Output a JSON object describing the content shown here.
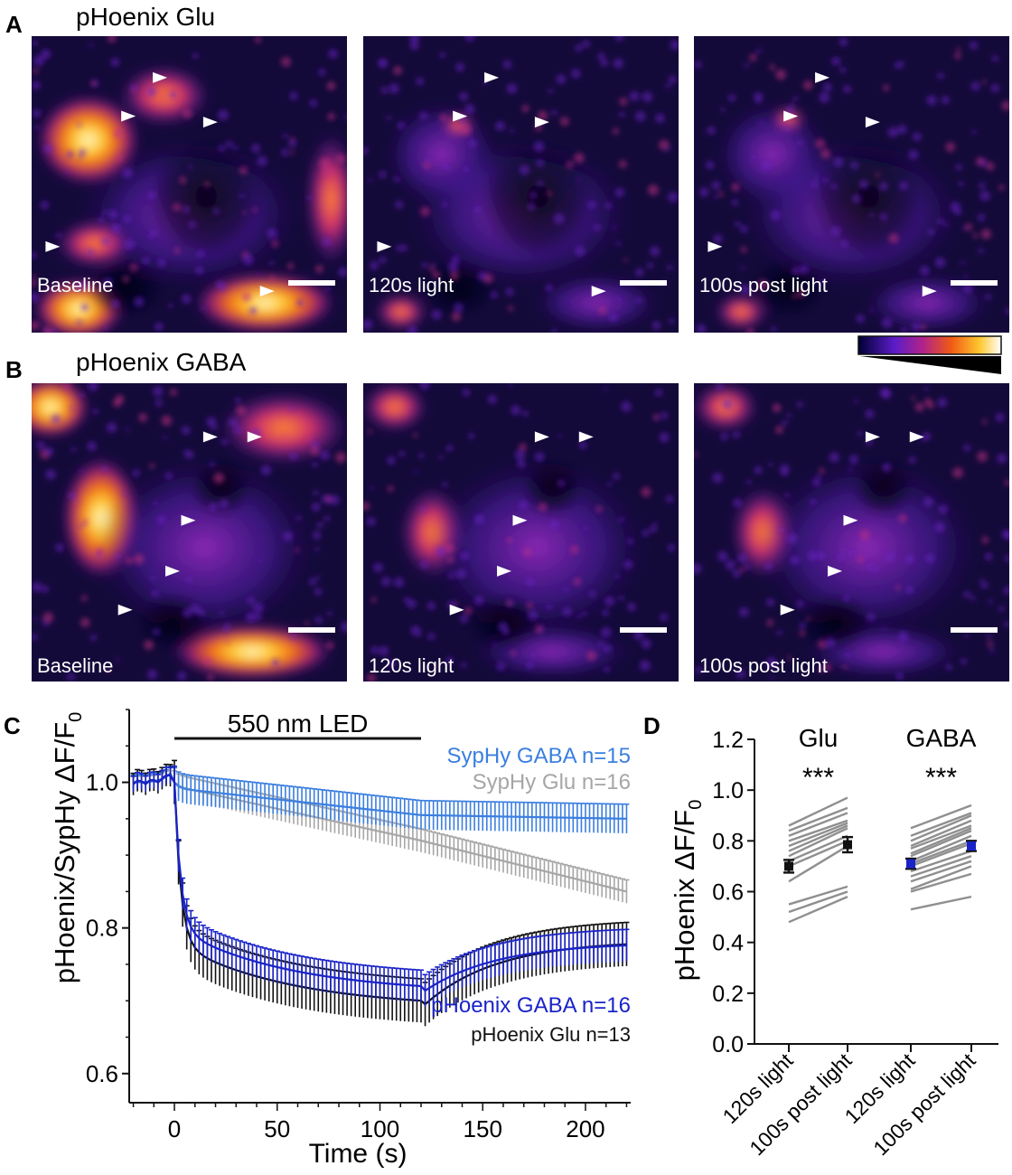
{
  "colors": {
    "glu_pH": "#111111",
    "gaba_pH": "#1a23c8",
    "glu_syphy": "#a6a6a6",
    "gaba_syphy": "#3b7fe0",
    "paired_lines": "#8f8f8f",
    "frame_bg": "#140a3a"
  },
  "panels": {
    "A": {
      "letter": "A",
      "title": "pHoenix Glu",
      "frames": [
        "Baseline",
        "120s light",
        "100s post light"
      ],
      "arrowheads": [
        [
          [
            0.43,
            0.14
          ],
          [
            0.33,
            0.27
          ],
          [
            0.59,
            0.29
          ],
          [
            0.09,
            0.71
          ],
          [
            0.77,
            0.86
          ]
        ],
        [
          [
            0.43,
            0.14
          ],
          [
            0.33,
            0.27
          ],
          [
            0.59,
            0.29
          ],
          [
            0.09,
            0.71
          ],
          [
            0.77,
            0.86
          ]
        ],
        [
          [
            0.43,
            0.14
          ],
          [
            0.33,
            0.27
          ],
          [
            0.59,
            0.29
          ],
          [
            0.09,
            0.71
          ],
          [
            0.77,
            0.86
          ]
        ]
      ]
    },
    "B": {
      "letter": "B",
      "title": "pHoenix GABA",
      "frames": [
        "Baseline",
        "120s light",
        "100s post light"
      ],
      "arrowheads": [
        [
          [
            0.59,
            0.18
          ],
          [
            0.73,
            0.18
          ],
          [
            0.52,
            0.46
          ],
          [
            0.47,
            0.63
          ],
          [
            0.32,
            0.76
          ]
        ],
        [
          [
            0.59,
            0.18
          ],
          [
            0.73,
            0.18
          ],
          [
            0.52,
            0.46
          ],
          [
            0.47,
            0.63
          ],
          [
            0.32,
            0.76
          ]
        ],
        [
          [
            0.59,
            0.18
          ],
          [
            0.73,
            0.18
          ],
          [
            0.52,
            0.46
          ],
          [
            0.47,
            0.63
          ],
          [
            0.32,
            0.76
          ]
        ]
      ]
    },
    "C": {
      "letter": "C"
    },
    "D": {
      "letter": "D"
    }
  },
  "chart_data": [
    {
      "panel": "C",
      "type": "line",
      "xlabel": "Time (s)",
      "ylabel_main": "pHoenix/SypHy ",
      "ylabel_delta": "ΔF/F",
      "ylabel_sub": "0",
      "xlim": [
        -22,
        222
      ],
      "ylim": [
        0.56,
        1.1
      ],
      "xticks": [
        0,
        50,
        100,
        150,
        200
      ],
      "yticks": [
        0.6,
        0.8,
        1.0
      ],
      "ytick_labels": [
        "0.6",
        "0.8",
        "1.0"
      ],
      "annotation_bar": {
        "label": "550 nm LED",
        "x_start": 0,
        "x_end": 120
      },
      "series": [
        {
          "name": "SypHy GABA n=15",
          "color_key": "gaba_syphy",
          "legend": "top-right"
        },
        {
          "name": "SypHy Glu n=16",
          "color_key": "glu_syphy",
          "legend": "top-right"
        },
        {
          "name": "pHoenix GABA n=16",
          "color_key": "gaba_pH",
          "legend": "bottom-right"
        },
        {
          "name": "pHoenix Glu n=13",
          "color_key": "glu_pH",
          "legend": "bottom-right"
        }
      ],
      "series_curves": {
        "SypHy GABA n=15": {
          "pre": 1.0,
          "dip": 0.992,
          "light_end": 0.955,
          "final": 0.95,
          "err": 0.02
        },
        "SypHy Glu n=16": {
          "pre": 1.0,
          "dip": 0.995,
          "light_end": 0.92,
          "final": 0.85,
          "err": 0.016
        },
        "pHoenix GABA n=16": {
          "pre": 1.0,
          "fast": 0.8,
          "light_end": 0.71,
          "final": 0.78,
          "err": 0.022
        },
        "pHoenix Glu n=13": {
          "pre": 1.0,
          "fast": 0.78,
          "light_end": 0.69,
          "final": 0.783,
          "err": 0.03
        }
      }
    },
    {
      "panel": "D",
      "type": "scatter",
      "ylabel_main": "pHoenix ",
      "ylabel_delta": "ΔF/F",
      "ylabel_sub": "0",
      "ylim": [
        0,
        1.2
      ],
      "yticks": [
        0.0,
        0.2,
        0.4,
        0.6,
        0.8,
        1.0,
        1.2
      ],
      "ytick_labels": [
        "0.0",
        "0.2",
        "0.4",
        "0.6",
        "0.8",
        "1.0",
        "1.2"
      ],
      "categories": [
        "120s light",
        "100s post light",
        "120s light",
        "100s post light"
      ],
      "groups": [
        {
          "name": "Glu",
          "significance": "***",
          "mean_color_key": "glu_pH",
          "means": [
            0.7,
            0.785
          ],
          "sem": [
            0.025,
            0.03
          ],
          "paired": [
            [
              0.86,
              0.97
            ],
            [
              0.84,
              0.93
            ],
            [
              0.82,
              0.91
            ],
            [
              0.8,
              0.88
            ],
            [
              0.78,
              0.87
            ],
            [
              0.76,
              0.86
            ],
            [
              0.74,
              0.85
            ],
            [
              0.72,
              0.82
            ],
            [
              0.7,
              0.8
            ],
            [
              0.64,
              0.78
            ],
            [
              0.55,
              0.62
            ],
            [
              0.52,
              0.6
            ],
            [
              0.48,
              0.58
            ]
          ]
        },
        {
          "name": "GABA",
          "significance": "***",
          "mean_color_key": "gaba_pH",
          "means": [
            0.71,
            0.78
          ],
          "sem": [
            0.02,
            0.02
          ],
          "paired": [
            [
              0.85,
              0.94
            ],
            [
              0.82,
              0.91
            ],
            [
              0.8,
              0.9
            ],
            [
              0.78,
              0.88
            ],
            [
              0.77,
              0.86
            ],
            [
              0.75,
              0.85
            ],
            [
              0.74,
              0.84
            ],
            [
              0.72,
              0.82
            ],
            [
              0.71,
              0.8
            ],
            [
              0.7,
              0.79
            ],
            [
              0.68,
              0.76
            ],
            [
              0.66,
              0.74
            ],
            [
              0.64,
              0.72
            ],
            [
              0.61,
              0.7
            ],
            [
              0.6,
              0.67
            ],
            [
              0.53,
              0.58
            ]
          ]
        }
      ]
    }
  ]
}
